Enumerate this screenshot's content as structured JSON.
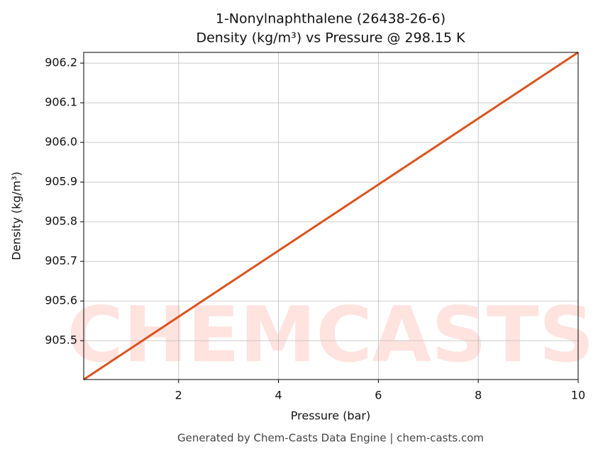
{
  "chart_data": {
    "type": "line",
    "title": "1-Nonylnaphthalene (26438-26-6)",
    "subtitle": "Density (kg/m³) vs Pressure @ 298.15 K",
    "x_label": "Pressure (bar)",
    "y_label": "Density (kg/m³)",
    "watermark": "CHEMCASTS",
    "footer": "Generated by Chem-Casts Data Engine | chem-casts.com",
    "x": [
      0.1,
      10
    ],
    "series": [
      {
        "name": "Density",
        "color": "#d9541e",
        "values": [
          905.402,
          906.227
        ]
      }
    ],
    "xlim": [
      0.1,
      10
    ],
    "xticks": [
      2,
      4,
      6,
      8,
      10
    ],
    "ylim": [
      905.402,
      906.227
    ],
    "yticks": [
      905.5,
      905.6,
      905.7,
      905.8,
      905.9,
      {
        "value": 906.0,
        "label": "906.0"
      },
      906.1,
      906.2
    ],
    "grid": true
  }
}
